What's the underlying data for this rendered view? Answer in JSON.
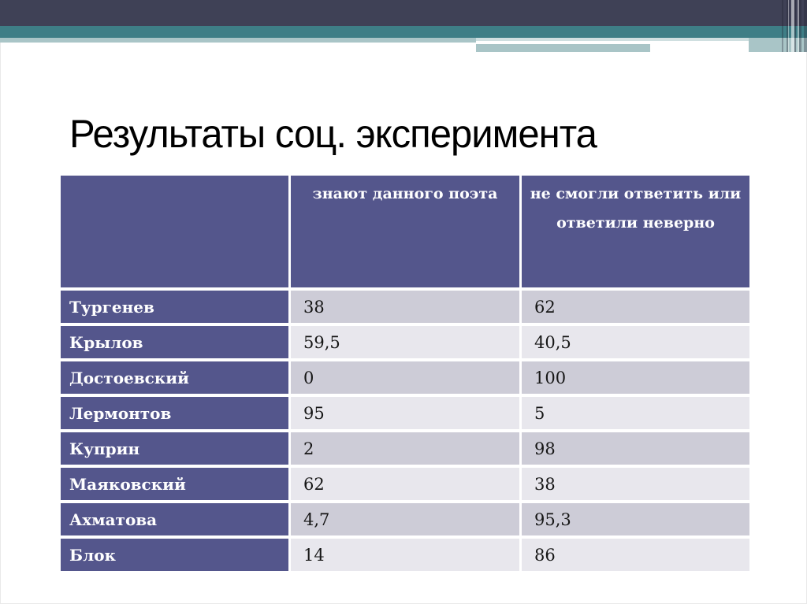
{
  "slide": {
    "title": "Результаты соц. эксперимента"
  },
  "table": {
    "col_headers": {
      "know": "знают данного поэта",
      "fail": "не смогли ответить или ответили неверно"
    },
    "rows": [
      {
        "name": "Тургенев",
        "know": "38",
        "fail": "62"
      },
      {
        "name": "Крылов",
        "know": "59,5",
        "fail": "40,5"
      },
      {
        "name": "Достоевский",
        "know": "0",
        "fail": "100"
      },
      {
        "name": "Лермонтов",
        "know": "95",
        "fail": "5"
      },
      {
        "name": "Куприн",
        "know": "2",
        "fail": "98"
      },
      {
        "name": "Маяковский",
        "know": "62",
        "fail": "38"
      },
      {
        "name": "Ахматова",
        "know": "4,7",
        "fail": "95,3"
      },
      {
        "name": "Блок",
        "know": "14",
        "fail": "86"
      }
    ]
  },
  "chart_data": {
    "type": "table",
    "title": "Результаты соц. эксперимента",
    "categories": [
      "Тургенев",
      "Крылов",
      "Достоевский",
      "Лермонтов",
      "Куприн",
      "Маяковский",
      "Ахматова",
      "Блок"
    ],
    "series": [
      {
        "name": "знают данного поэта",
        "values": [
          38,
          59.5,
          0,
          95,
          2,
          62,
          4.7,
          14
        ]
      },
      {
        "name": "не смогли ответить или ответили неверно",
        "values": [
          62,
          40.5,
          100,
          5,
          98,
          38,
          95.3,
          86
        ]
      }
    ]
  },
  "colors": {
    "band_dark": "#3f4156",
    "band_teal": "#3e7e86",
    "band_light_teal": "#a9c5c7",
    "header_purple": "#54568c",
    "row_dark": "#cdccd7",
    "row_light": "#e8e7ed",
    "title_text": "#000000",
    "header_text": "#ffffff"
  }
}
